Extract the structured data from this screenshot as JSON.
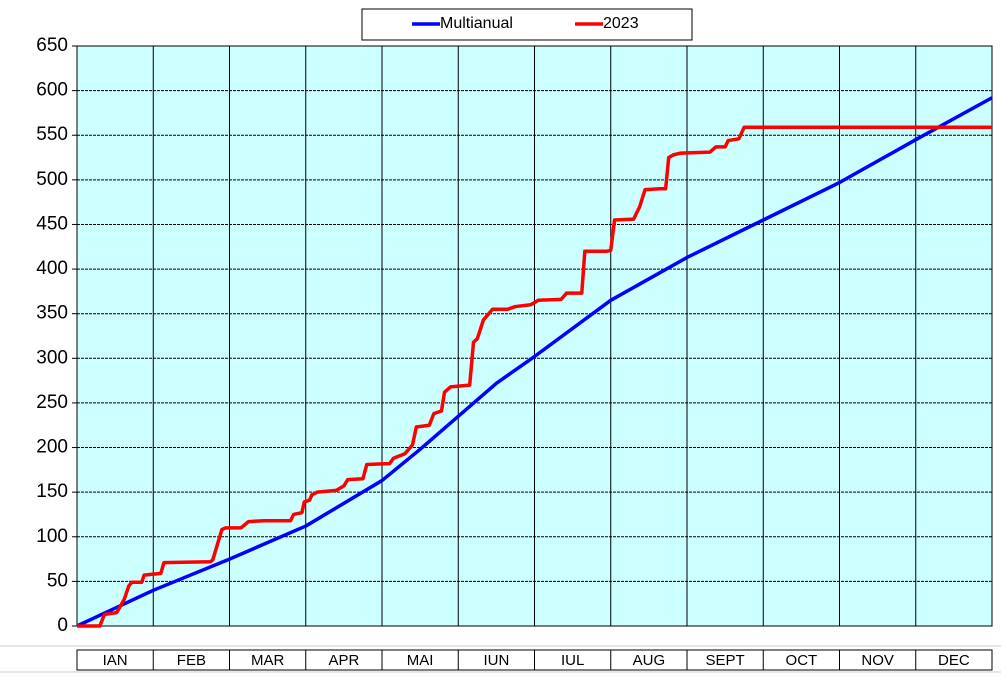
{
  "chart_data": {
    "type": "line",
    "categories": [
      "IAN",
      "FEB",
      "MAR",
      "APR",
      "MAI",
      "IUN",
      "IUL",
      "AUG",
      "SEPT",
      "OCT",
      "NOV",
      "DEC"
    ],
    "xlim": [
      0,
      12
    ],
    "ylim": [
      0,
      650
    ],
    "yticks": [
      0,
      50,
      100,
      150,
      200,
      250,
      300,
      350,
      400,
      450,
      500,
      550,
      600,
      650
    ],
    "grid": true,
    "legend": "top",
    "series": [
      {
        "name": "Multianual",
        "color": "#0000ff",
        "x": [
          0,
          1,
          2,
          3,
          4,
          4.5,
          5,
          5.5,
          6,
          7,
          8,
          9,
          10,
          11,
          12
        ],
        "values": [
          0,
          40,
          75,
          112,
          163,
          198,
          235,
          272,
          302,
          365,
          413,
          455,
          497,
          545,
          592
        ]
      },
      {
        "name": "2023",
        "color": "#ff0000",
        "x": [
          0,
          0.3,
          0.36,
          0.52,
          0.62,
          0.68,
          0.72,
          0.85,
          0.88,
          1.1,
          1.14,
          1.75,
          1.78,
          1.9,
          1.95,
          2.15,
          2.25,
          2.45,
          2.8,
          2.84,
          2.95,
          2.98,
          3.05,
          3.08,
          3.15,
          3.4,
          3.5,
          3.55,
          3.75,
          3.8,
          4.1,
          4.15,
          4.3,
          4.4,
          4.45,
          4.62,
          4.68,
          4.78,
          4.82,
          4.9,
          5.15,
          5.2,
          5.25,
          5.33,
          5.45,
          5.65,
          5.75,
          5.95,
          6.05,
          6.35,
          6.42,
          6.62,
          6.66,
          6.95,
          7.0,
          7.05,
          7.3,
          7.38,
          7.45,
          7.65,
          7.72,
          7.76,
          7.82,
          7.92,
          8.3,
          8.38,
          8.5,
          8.54,
          8.68,
          8.75,
          12
        ],
        "values": [
          0,
          0,
          13,
          15,
          30,
          45,
          49,
          49,
          57,
          59,
          71,
          72,
          74,
          108,
          110,
          110,
          117,
          118,
          118,
          125,
          127,
          139,
          141,
          147,
          150,
          152,
          157,
          164,
          165,
          181,
          182,
          188,
          193,
          203,
          223,
          225,
          238,
          241,
          262,
          268,
          270,
          318,
          322,
          343,
          355,
          355,
          358,
          360,
          365,
          366,
          373,
          373,
          420,
          420,
          421,
          455,
          456,
          470,
          489,
          490,
          490,
          525,
          528,
          530,
          531,
          537,
          537,
          544,
          546,
          559,
          559
        ]
      }
    ]
  }
}
